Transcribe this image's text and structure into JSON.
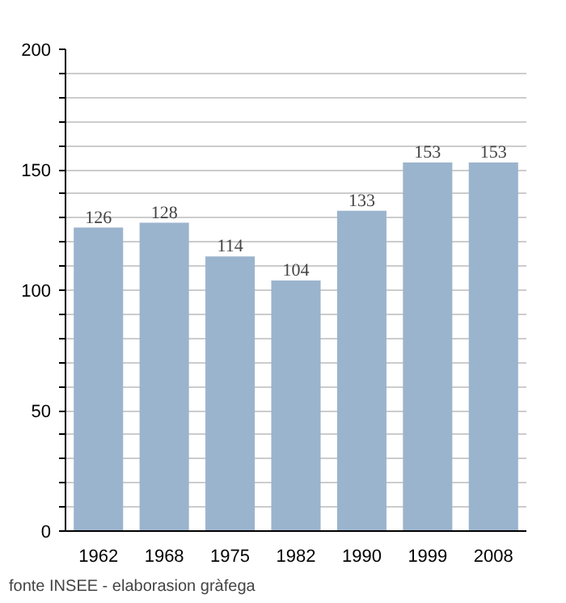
{
  "chart_data": {
    "type": "bar",
    "categories": [
      "1962",
      "1968",
      "1975",
      "1982",
      "1990",
      "1999",
      "2008"
    ],
    "values": [
      126,
      128,
      114,
      104,
      133,
      153,
      153
    ],
    "color": "#9bb4cd",
    "ylim": [
      0,
      200
    ],
    "yticks": [
      0,
      {
        "value": 10,
        "label": null
      },
      {
        "value": 20,
        "label": null
      },
      {
        "value": 30,
        "label": null
      },
      {
        "value": 40,
        "label": null
      },
      50,
      {
        "value": 60,
        "label": null
      },
      {
        "value": 70,
        "label": null
      },
      {
        "value": 80,
        "label": null
      },
      {
        "value": 90,
        "label": null
      },
      100,
      {
        "value": 110,
        "label": null
      },
      {
        "value": 120,
        "label": null
      },
      {
        "value": 130,
        "label": null
      },
      {
        "value": 140,
        "label": null
      },
      150,
      {
        "value": 160,
        "label": null
      },
      {
        "value": 170,
        "label": null
      },
      {
        "value": 180,
        "label": null
      },
      {
        "value": 190,
        "label": null
      },
      200
    ],
    "grid": "y",
    "data_labels": true,
    "annotations": [
      "fonte INSEE - elaborasion gràfega"
    ]
  }
}
